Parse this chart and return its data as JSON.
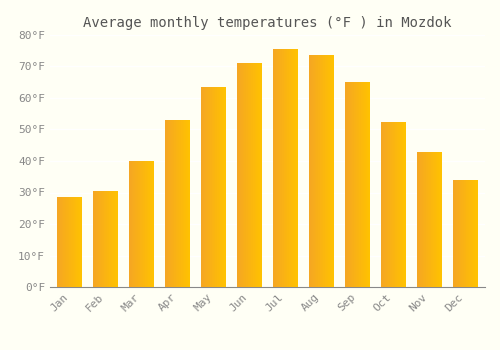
{
  "title": "Average monthly temperatures (°F ) in Mozdok",
  "months": [
    "Jan",
    "Feb",
    "Mar",
    "Apr",
    "May",
    "Jun",
    "Jul",
    "Aug",
    "Sep",
    "Oct",
    "Nov",
    "Dec"
  ],
  "values": [
    28.5,
    30.5,
    40.0,
    53.0,
    63.5,
    71.0,
    75.5,
    73.5,
    65.0,
    52.5,
    43.0,
    34.0
  ],
  "bar_color_left": "#F5A623",
  "bar_color_right": "#FFC200",
  "ylim": [
    0,
    80
  ],
  "yticks": [
    0,
    10,
    20,
    30,
    40,
    50,
    60,
    70,
    80
  ],
  "ytick_labels": [
    "0°F",
    "10°F",
    "20°F",
    "30°F",
    "40°F",
    "50°F",
    "60°F",
    "70°F",
    "80°F"
  ],
  "background_color": "#FFFFF5",
  "grid_color": "#DDDDDD",
  "title_fontsize": 10,
  "tick_fontsize": 8,
  "bar_width": 0.7,
  "xlabel_rotation": 45
}
